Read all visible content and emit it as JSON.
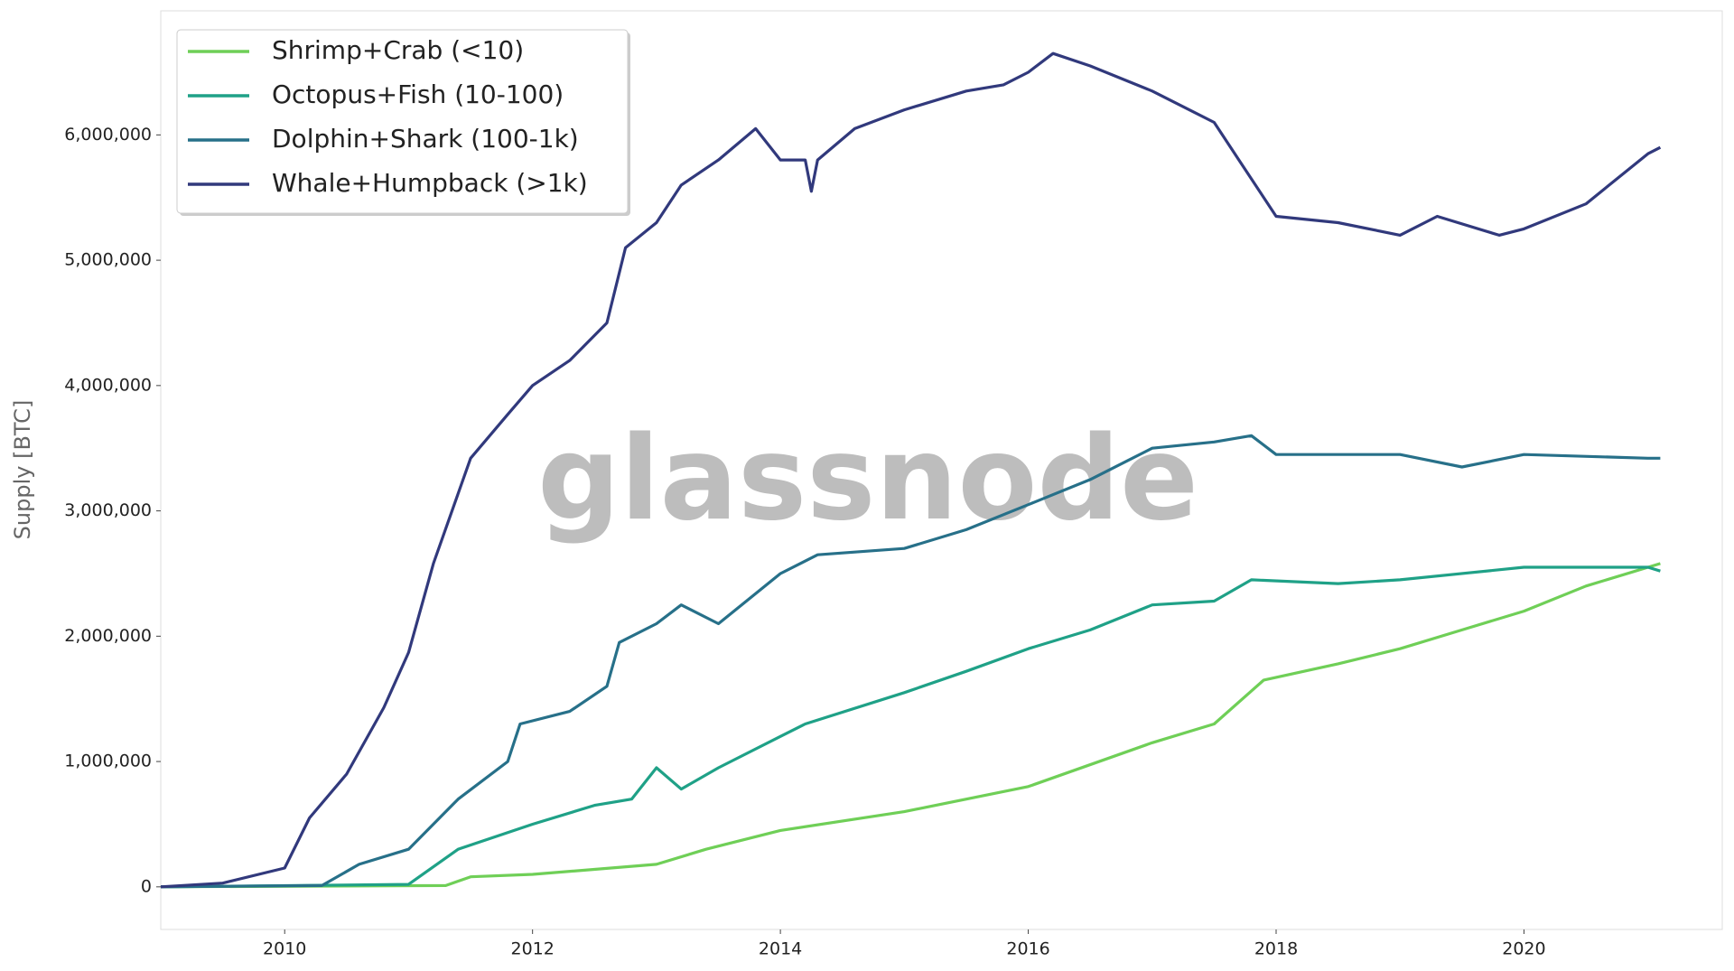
{
  "chart_data": {
    "type": "line",
    "ylabel": "Supply [BTC]",
    "watermark": "glassnode",
    "xlim": [
      2009,
      2021.6
    ],
    "xticks": [
      2010,
      2012,
      2014,
      2016,
      2018,
      2020
    ],
    "ylim": [
      -340000,
      6990000
    ],
    "yticks": [
      {
        "value": 0,
        "label": "0"
      },
      {
        "value": 1000000,
        "label": "1,000,000"
      },
      {
        "value": 2000000,
        "label": "2,000,000"
      },
      {
        "value": 3000000,
        "label": "3,000,000"
      },
      {
        "value": 4000000,
        "label": "4,000,000"
      },
      {
        "value": 5000000,
        "label": "5,000,000"
      },
      {
        "value": 6000000,
        "label": "6,000,000"
      }
    ],
    "legend": "upper left",
    "series": [
      {
        "name": "Shrimp+Crab (<10)",
        "color": "#6fcf57",
        "x": [
          2009,
          2011.3,
          2011.5,
          2012.0,
          2013.0,
          2013.4,
          2014.0,
          2015.0,
          2016.0,
          2017.0,
          2017.5,
          2017.9,
          2018.5,
          2019.0,
          2019.5,
          2020.0,
          2020.5,
          2021.1
        ],
        "values": [
          0,
          10000,
          80000,
          100000,
          180000,
          300000,
          450000,
          600000,
          800000,
          1150000,
          1300000,
          1650000,
          1780000,
          1900000,
          2050000,
          2200000,
          2400000,
          2580000
        ]
      },
      {
        "name": "Octopus+Fish (10-100)",
        "color": "#1fa187",
        "x": [
          2009,
          2011.0,
          2011.4,
          2012.0,
          2012.5,
          2012.8,
          2013.0,
          2013.2,
          2013.5,
          2014.0,
          2014.2,
          2015.0,
          2015.5,
          2016.0,
          2016.5,
          2017.0,
          2017.5,
          2017.8,
          2018.5,
          2019.0,
          2020.0,
          2021.0,
          2021.1
        ],
        "values": [
          0,
          20000,
          300000,
          500000,
          650000,
          700000,
          950000,
          780000,
          950000,
          1200000,
          1300000,
          1550000,
          1720000,
          1900000,
          2050000,
          2250000,
          2280000,
          2450000,
          2420000,
          2450000,
          2550000,
          2550000,
          2520000
        ]
      },
      {
        "name": "Dolphin+Shark (100-1k)",
        "color": "#277089",
        "x": [
          2009,
          2010.3,
          2010.6,
          2011.0,
          2011.4,
          2011.8,
          2011.9,
          2012.3,
          2012.6,
          2012.7,
          2013.0,
          2013.2,
          2013.5,
          2014.0,
          2014.3,
          2015.0,
          2015.5,
          2016.0,
          2016.5,
          2017.0,
          2017.5,
          2017.8,
          2018.0,
          2019.0,
          2019.5,
          2020.0,
          2021.0,
          2021.1
        ],
        "values": [
          0,
          10000,
          180000,
          300000,
          700000,
          1000000,
          1300000,
          1400000,
          1600000,
          1950000,
          2100000,
          2250000,
          2100000,
          2500000,
          2650000,
          2700000,
          2850000,
          3050000,
          3250000,
          3500000,
          3550000,
          3600000,
          3450000,
          3450000,
          3350000,
          3450000,
          3420000,
          3420000
        ]
      },
      {
        "name": "Whale+Humpback (>1k)",
        "color": "#31397c",
        "x": [
          2009,
          2009.5,
          2010.0,
          2010.2,
          2010.5,
          2010.8,
          2011.0,
          2011.2,
          2011.5,
          2011.8,
          2012.0,
          2012.3,
          2012.6,
          2012.75,
          2013.0,
          2013.2,
          2013.5,
          2013.8,
          2014.0,
          2014.2,
          2014.25,
          2014.3,
          2014.6,
          2015.0,
          2015.5,
          2015.8,
          2016.0,
          2016.2,
          2016.5,
          2017.0,
          2017.5,
          2017.7,
          2018.0,
          2018.5,
          2019.0,
          2019.3,
          2019.8,
          2020.0,
          2020.5,
          2021.0,
          2021.1
        ],
        "values": [
          0,
          30000,
          150000,
          550000,
          900000,
          1430000,
          1870000,
          2580000,
          3420000,
          3770000,
          4000000,
          4200000,
          4500000,
          5100000,
          5300000,
          5600000,
          5800000,
          6050000,
          5800000,
          5800000,
          5550000,
          5800000,
          6050000,
          6200000,
          6350000,
          6400000,
          6500000,
          6650000,
          6550000,
          6350000,
          6100000,
          5800000,
          5350000,
          5300000,
          5200000,
          5350000,
          5200000,
          5250000,
          5450000,
          5850000,
          5900000
        ]
      }
    ]
  }
}
